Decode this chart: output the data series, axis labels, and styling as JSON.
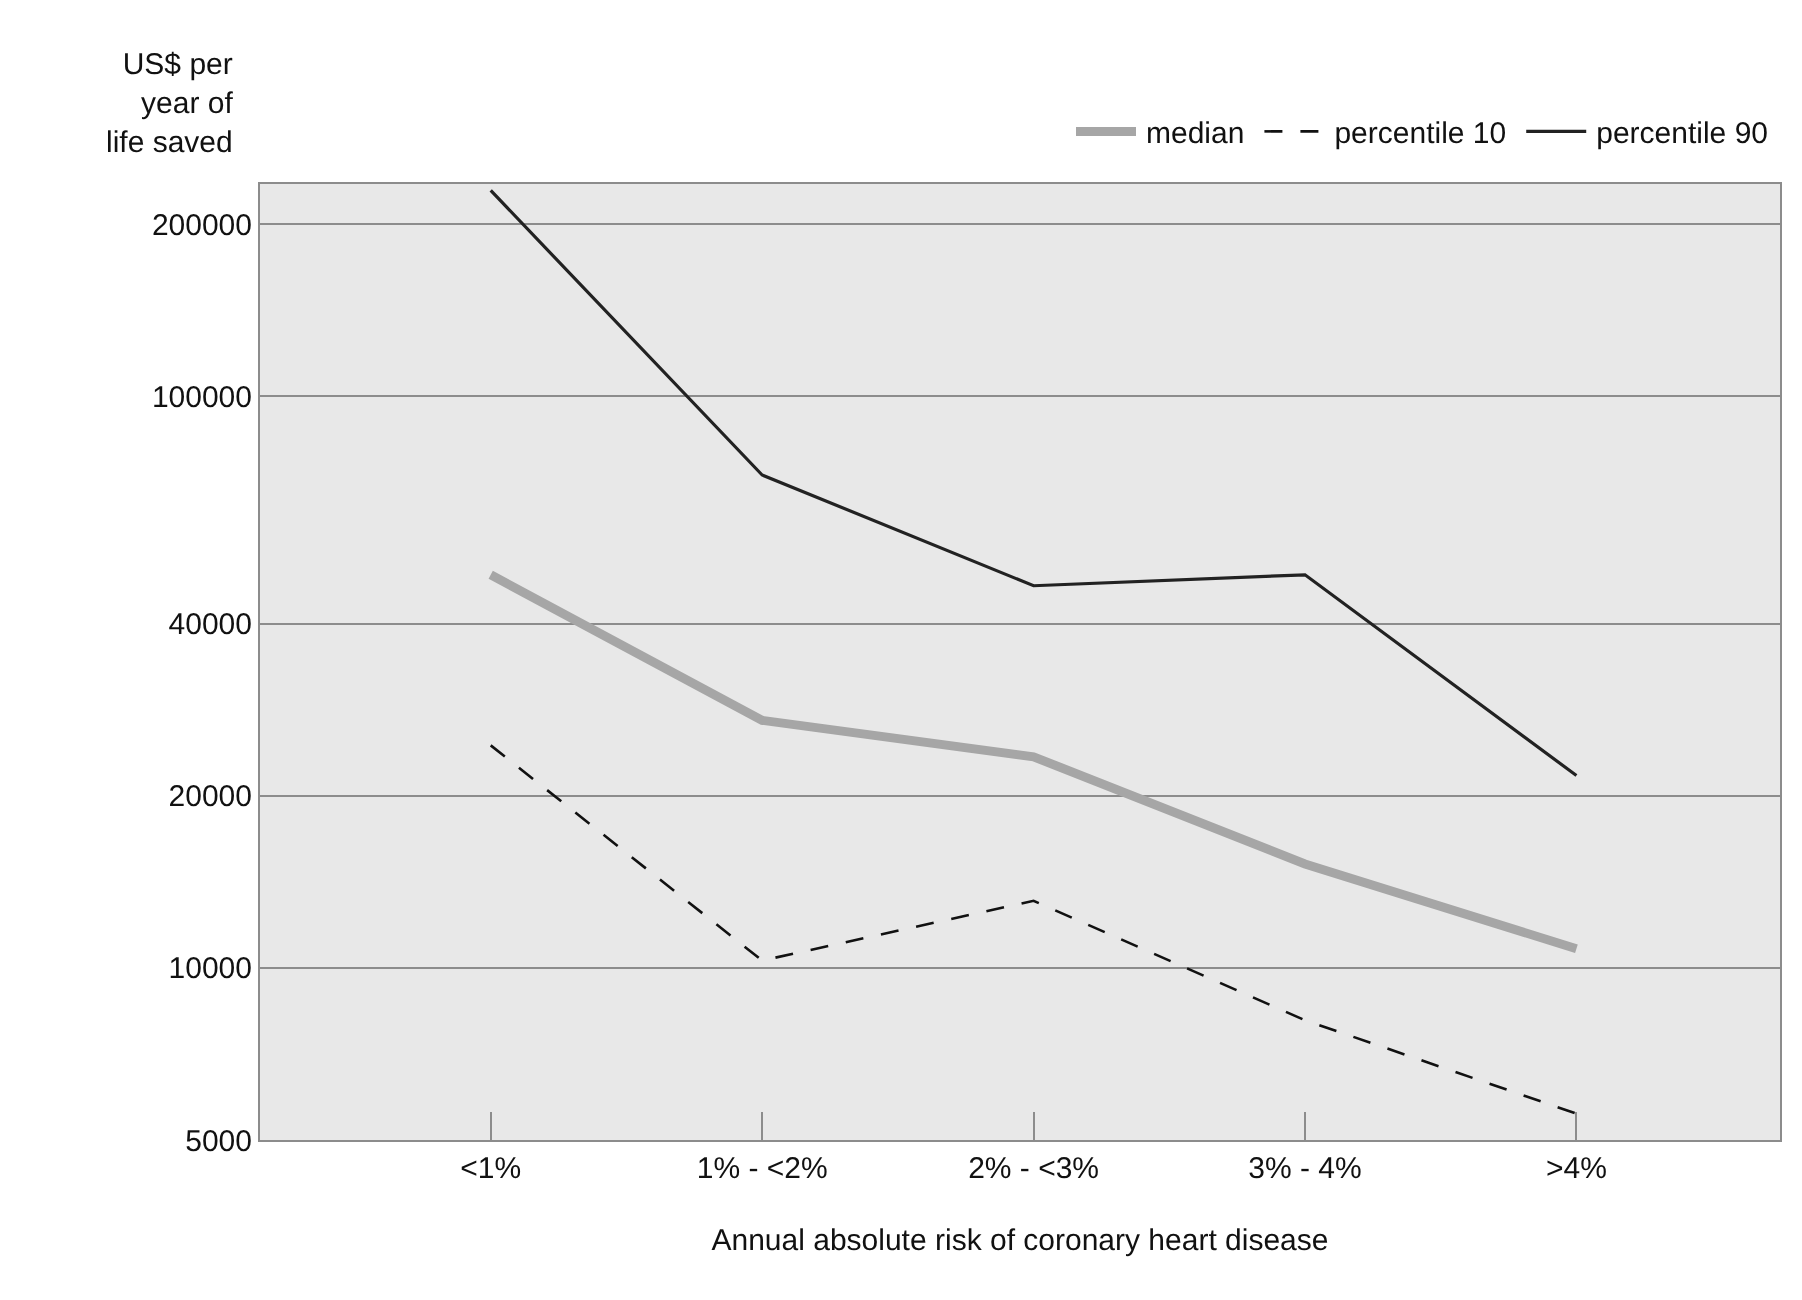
{
  "chart_data": {
    "type": "line",
    "xlabel": "Annual absolute risk of coronary heart disease",
    "ylabel": "US$ per year of life saved",
    "categories": [
      "<1%",
      "1% - <2%",
      "2% - <3%",
      "3% - 4%",
      ">4%"
    ],
    "series": [
      {
        "name": "median",
        "color": "#a6a6a6",
        "values": [
          48700,
          27100,
          23400,
          15200,
          10800
        ],
        "line_style": "solid"
      },
      {
        "name": "percentile 10",
        "color": "#111111",
        "values": [
          24500,
          10300,
          13100,
          8100,
          5560
        ],
        "line_style": "dashed"
      },
      {
        "name": "percentile 90",
        "color": "#222222",
        "values": [
          229000,
          72800,
          46600,
          48700,
          21700
        ],
        "line_style": "solid"
      }
    ],
    "log": true,
    "ylim": [
      5000,
      235000
    ],
    "yticks": [
      5000,
      10000,
      20000,
      40000,
      100000,
      200000
    ],
    "grid": "y",
    "legend": "top right",
    "marker": "none"
  }
}
